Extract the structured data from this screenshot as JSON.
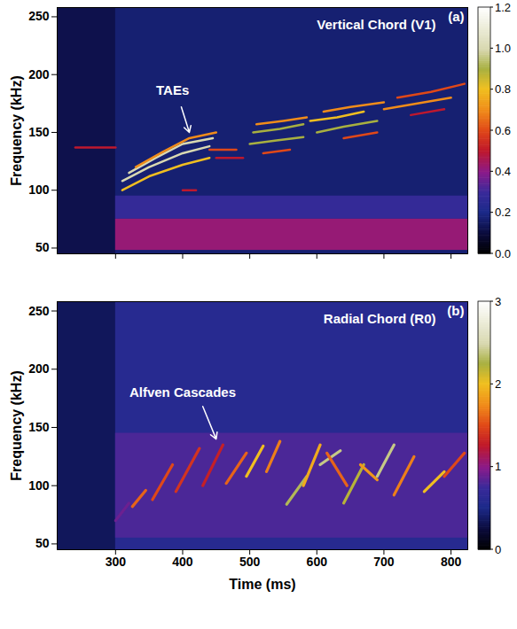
{
  "chart_data": [
    {
      "type": "heatmap",
      "title": "Vertical Chord (V1)",
      "panel": "(a)",
      "ylabel": "Frequency (kHz)",
      "xlim": [
        213,
        825
      ],
      "xticks": [
        300,
        400,
        500,
        600,
        700,
        800
      ],
      "ylim": [
        45,
        258
      ],
      "yticks": [
        50,
        100,
        150,
        200,
        250
      ],
      "tick_labels": "y",
      "background": 0.12,
      "bands": [
        {
          "time": [
            300,
            825
          ],
          "frequency": [
            45,
            258
          ],
          "amplitude": 0.17
        },
        {
          "time": [
            300,
            825
          ],
          "frequency": [
            75,
            95
          ],
          "amplitude": 0.28
        },
        {
          "time": [
            300,
            825
          ],
          "frequency": [
            48,
            75
          ],
          "amplitude": 0.42
        }
      ],
      "lines": [
        {
          "time": [
            240,
            300
          ],
          "frequency": [
            137,
            137
          ],
          "amplitude": 0.5
        },
        {
          "time": [
            310,
            350,
            400,
            440
          ],
          "frequency": [
            100,
            112,
            122,
            128
          ],
          "amplitude": 0.8
        },
        {
          "time": [
            310,
            350,
            400,
            440
          ],
          "frequency": [
            108,
            120,
            132,
            138
          ],
          "amplitude": 1.0
        },
        {
          "time": [
            320,
            360,
            400,
            445
          ],
          "frequency": [
            115,
            128,
            140,
            145
          ],
          "amplitude": 1.0
        },
        {
          "time": [
            330,
            370,
            410,
            450
          ],
          "frequency": [
            120,
            133,
            145,
            150
          ],
          "amplitude": 0.7
        },
        {
          "time": [
            400,
            420
          ],
          "frequency": [
            100,
            100
          ],
          "amplitude": 0.5
        },
        {
          "time": [
            440,
            480
          ],
          "frequency": [
            135,
            135
          ],
          "amplitude": 0.6
        },
        {
          "time": [
            450,
            490
          ],
          "frequency": [
            128,
            128
          ],
          "amplitude": 0.5
        },
        {
          "time": [
            500,
            540,
            580
          ],
          "frequency": [
            140,
            143,
            146
          ],
          "amplitude": 0.9
        },
        {
          "time": [
            505,
            545,
            580
          ],
          "frequency": [
            150,
            153,
            157
          ],
          "amplitude": 0.9
        },
        {
          "time": [
            510,
            550,
            585
          ],
          "frequency": [
            157,
            160,
            163
          ],
          "amplitude": 0.7
        },
        {
          "time": [
            520,
            560
          ],
          "frequency": [
            132,
            135
          ],
          "amplitude": 0.6
        },
        {
          "time": [
            590,
            630,
            670
          ],
          "frequency": [
            160,
            163,
            168
          ],
          "amplitude": 0.8
        },
        {
          "time": [
            600,
            640,
            690
          ],
          "frequency": [
            150,
            155,
            160
          ],
          "amplitude": 0.9
        },
        {
          "time": [
            610,
            650,
            700
          ],
          "frequency": [
            168,
            172,
            176
          ],
          "amplitude": 0.7
        },
        {
          "time": [
            640,
            690
          ],
          "frequency": [
            145,
            150
          ],
          "amplitude": 0.6
        },
        {
          "time": [
            700,
            750,
            800
          ],
          "frequency": [
            170,
            175,
            180
          ],
          "amplitude": 0.7
        },
        {
          "time": [
            720,
            770,
            820
          ],
          "frequency": [
            180,
            185,
            192
          ],
          "amplitude": 0.6
        },
        {
          "time": [
            740,
            790
          ],
          "frequency": [
            165,
            170
          ],
          "amplitude": 0.5
        }
      ],
      "annotations": [
        {
          "text": "TAEs",
          "x": 385,
          "y": 186,
          "arrow_from": [
            398,
            172
          ],
          "arrow_to": [
            410,
            150
          ]
        }
      ],
      "colorbar": {
        "range": [
          0,
          1.2
        ],
        "ticks": [
          {
            "value": 0,
            "label": "0.0"
          },
          0.2,
          0.4,
          0.6,
          0.8,
          {
            "value": 1,
            "label": "1.0"
          },
          1.2
        ]
      }
    },
    {
      "type": "heatmap",
      "title": "Radial Chord (R0)",
      "panel": "(b)",
      "xlabel": "Time (ms)",
      "ylabel": "Frequency (kHz)",
      "xlim": [
        213,
        825
      ],
      "xticks": [
        300,
        400,
        500,
        600,
        700,
        800
      ],
      "ylim": [
        45,
        258
      ],
      "yticks": [
        50,
        100,
        150,
        200,
        250
      ],
      "tick_labels": true,
      "background": 0.35,
      "bands": [
        {
          "time": [
            300,
            825
          ],
          "frequency": [
            45,
            258
          ],
          "amplitude": 0.6
        },
        {
          "time": [
            300,
            825
          ],
          "frequency": [
            55,
            145
          ],
          "amplitude": 0.8
        }
      ],
      "lines": [
        {
          "time": [
            300,
            320
          ],
          "frequency": [
            70,
            85
          ],
          "amplitude": 0.9
        },
        {
          "time": [
            325,
            345
          ],
          "frequency": [
            82,
            96
          ],
          "amplitude": 1.6
        },
        {
          "time": [
            355,
            385
          ],
          "frequency": [
            88,
            118
          ],
          "amplitude": 1.5
        },
        {
          "time": [
            390,
            425
          ],
          "frequency": [
            95,
            132
          ],
          "amplitude": 1.4
        },
        {
          "time": [
            430,
            460
          ],
          "frequency": [
            100,
            135
          ],
          "amplitude": 1.3
        },
        {
          "time": [
            465,
            495
          ],
          "frequency": [
            102,
            128
          ],
          "amplitude": 1.6
        },
        {
          "time": [
            495,
            520
          ],
          "frequency": [
            108,
            134
          ],
          "amplitude": 2.0
        },
        {
          "time": [
            525,
            545
          ],
          "frequency": [
            112,
            138
          ],
          "amplitude": 1.7
        },
        {
          "time": [
            555,
            585
          ],
          "frequency": [
            84,
            108
          ],
          "amplitude": 2.3
        },
        {
          "time": [
            580,
            605
          ],
          "frequency": [
            100,
            135
          ],
          "amplitude": 1.9
        },
        {
          "time": [
            605,
            635
          ],
          "frequency": [
            118,
            130
          ],
          "amplitude": 2.4
        },
        {
          "time": [
            615,
            645
          ],
          "frequency": [
            128,
            100
          ],
          "amplitude": 1.6
        },
        {
          "time": [
            640,
            670
          ],
          "frequency": [
            85,
            118
          ],
          "amplitude": 2.2
        },
        {
          "time": [
            665,
            690
          ],
          "frequency": [
            118,
            105
          ],
          "amplitude": 1.8
        },
        {
          "time": [
            690,
            715
          ],
          "frequency": [
            108,
            135
          ],
          "amplitude": 2.4
        },
        {
          "time": [
            715,
            745
          ],
          "frequency": [
            92,
            125
          ],
          "amplitude": 1.7
        },
        {
          "time": [
            760,
            790
          ],
          "frequency": [
            95,
            112
          ],
          "amplitude": 2.0
        },
        {
          "time": [
            790,
            820
          ],
          "frequency": [
            108,
            128
          ],
          "amplitude": 1.5
        }
      ],
      "annotations": [
        {
          "text": "Alfven Cascades",
          "x": 400,
          "y": 180,
          "arrow_from": [
            430,
            168
          ],
          "arrow_to": [
            450,
            140
          ]
        }
      ],
      "colorbar": {
        "range": [
          0,
          3
        ],
        "ticks": [
          0,
          1,
          2,
          3
        ]
      }
    }
  ]
}
